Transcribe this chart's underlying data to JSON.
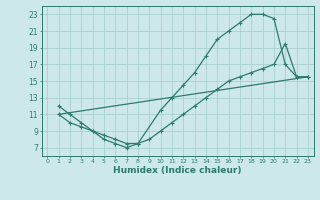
{
  "line1_x": [
    1,
    2,
    3,
    4,
    5,
    6,
    7,
    8,
    10,
    11,
    12,
    13,
    14,
    15,
    16,
    17,
    18,
    19,
    20,
    21,
    22,
    23
  ],
  "line1_y": [
    12,
    11,
    10,
    9,
    8,
    7.5,
    7,
    7.5,
    11.5,
    13,
    14.5,
    16,
    18,
    20,
    21,
    22,
    23,
    23,
    22.5,
    17,
    15.5,
    15.5
  ],
  "line2_x": [
    1,
    2,
    3,
    4,
    5,
    6,
    7,
    8,
    9,
    10,
    11,
    12,
    13,
    14,
    15,
    16,
    17,
    18,
    19,
    20,
    21,
    22,
    23
  ],
  "line2_y": [
    11,
    10,
    9.5,
    9,
    8.5,
    8,
    7.5,
    7.5,
    8,
    9,
    10,
    11,
    12,
    13,
    14,
    15,
    15.5,
    16,
    16.5,
    17,
    19.5,
    15.5,
    15.5
  ],
  "line3_x": [
    1,
    23
  ],
  "line3_y": [
    11,
    15.5
  ],
  "color": "#2d7a6e",
  "bg_color": "#cce8e8",
  "grid_color": "#aacfcf",
  "xlabel": "Humidex (Indice chaleur)",
  "xlim": [
    -0.5,
    23.5
  ],
  "ylim": [
    6,
    24
  ],
  "yticks": [
    7,
    9,
    11,
    13,
    15,
    17,
    19,
    21,
    23
  ],
  "xticks": [
    0,
    1,
    2,
    3,
    4,
    5,
    6,
    7,
    8,
    9,
    10,
    11,
    12,
    13,
    14,
    15,
    16,
    17,
    18,
    19,
    20,
    21,
    22,
    23
  ]
}
